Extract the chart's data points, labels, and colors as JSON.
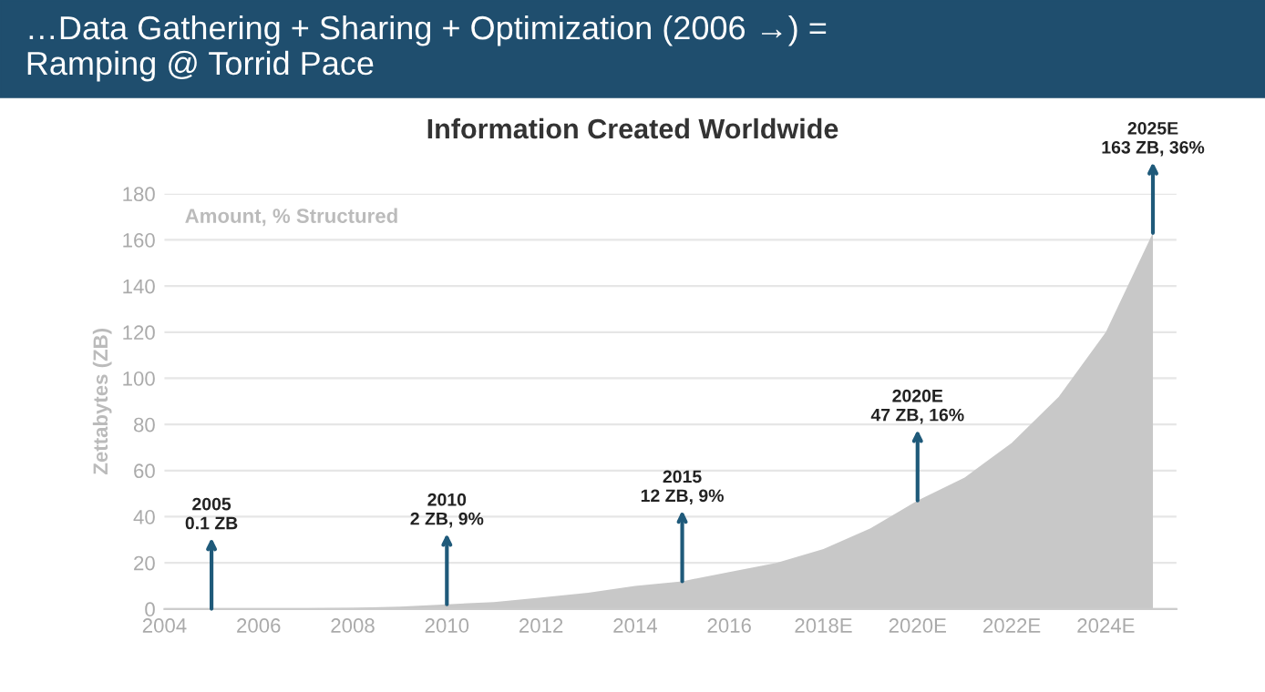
{
  "chart_data": {
    "type": "area",
    "title": "…Data Gathering + Sharing + Optimization (2006 →) =\nRamping @ Torrid Pace",
    "subtitle": "Information Created Worldwide",
    "ylabel": "Zettabytes (ZB)",
    "x": [
      2005,
      2006,
      2007,
      2008,
      2009,
      2010,
      2011,
      2012,
      2013,
      2014,
      2015,
      2016,
      2017,
      2018,
      2019,
      2020,
      2021,
      2022,
      2023,
      2024,
      2025
    ],
    "series": [
      {
        "color": "#c8c8c8",
        "values": [
          0.1,
          0.2,
          0.3,
          0.5,
          1,
          2,
          3,
          5,
          7,
          10,
          12,
          16,
          20,
          26,
          35,
          47,
          57,
          72,
          92,
          120,
          163
        ]
      }
    ],
    "xlim": [
      2004,
      2025.5
    ],
    "xticks": [
      2004,
      2006,
      2008,
      2010,
      2012,
      2014,
      2016,
      {
        "value": 2018,
        "label": "2018E"
      },
      {
        "value": 2020,
        "label": "2020E"
      },
      {
        "value": 2022,
        "label": "2022E"
      },
      {
        "value": 2024,
        "label": "2024E"
      }
    ],
    "ylim": [
      0,
      180
    ],
    "yticks": [
      0,
      20,
      40,
      60,
      80,
      100,
      120,
      140,
      160,
      180
    ],
    "grid": "y",
    "annotations": [
      "Amount, % Structured",
      {
        "text": "2005\n0.1 ZB",
        "x": 2005,
        "y": 0.1
      },
      {
        "text": "2010\n2 ZB, 9%",
        "x": 2010,
        "y": 2
      },
      {
        "text": "2015\n12 ZB, 9%",
        "x": 2015,
        "y": 12
      },
      {
        "text": "2020E\n47 ZB, 16%",
        "x": 2020,
        "y": 47
      },
      {
        "text": "2025E\n163 ZB, 36%",
        "x": 2025,
        "y": 163
      }
    ]
  }
}
